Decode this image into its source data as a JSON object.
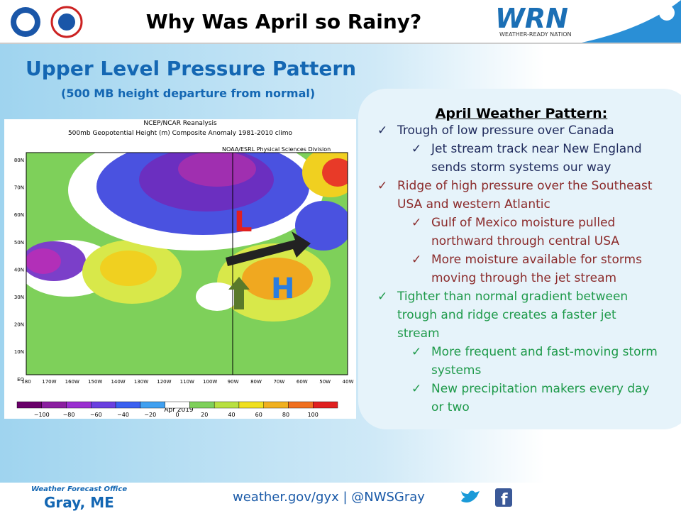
{
  "header": {
    "title": "Why Was April so Rainy?",
    "wrn_logo": "WRN",
    "wrn_tagline": "WEATHER-READY NATION"
  },
  "left": {
    "heading": "Upper Level Pressure Pattern",
    "subheading": "(500 MB height departure from normal)"
  },
  "map": {
    "title_lines": [
      "NCEP/NCAR Reanalysis",
      "500mb Geopotential Height (m) Composite Anomaly 1981-2010 climo"
    ],
    "credit": "NOAA/ESRL Physical Sciences Division",
    "lat_labels": [
      "80N",
      "70N",
      "60N",
      "50N",
      "40N",
      "30N",
      "20N",
      "10N",
      "EQ"
    ],
    "lon_labels": [
      "180",
      "170W",
      "160W",
      "150W",
      "140W",
      "130W",
      "120W",
      "110W",
      "100W",
      "90W",
      "80W",
      "70W",
      "60W",
      "50W",
      "40W"
    ],
    "date": "Apr 2019",
    "low_label": "L",
    "high_label": "H",
    "colorbar_labels": [
      "−100",
      "−80",
      "−60",
      "−40",
      "−20",
      "0",
      "20",
      "40",
      "60",
      "80",
      "100"
    ]
  },
  "pattern": {
    "title": "April Weather Pattern:",
    "groups": [
      {
        "color": "#1f2a5c",
        "text": "Trough of low pressure over Canada",
        "subitems": [
          "Jet stream track near New England sends storm systems our way"
        ]
      },
      {
        "color": "#8b2b2b",
        "text": "Ridge of high pressure over the Southeast USA and western Atlantic",
        "subitems": [
          "Gulf of Mexico moisture pulled northward through central USA",
          "More moisture available for storms moving through the jet stream"
        ]
      },
      {
        "color": "#1e9a4a",
        "text": "Tighter than normal gradient between trough and ridge creates a faster jet stream",
        "subitems": [
          "More frequent and fast-moving storm systems",
          "New precipitation makers every day or two"
        ]
      }
    ]
  },
  "footer": {
    "office_label": "Weather Forecast Office",
    "office": "Gray, ME",
    "links": "weather.gov/gyx | @NWSGray"
  }
}
